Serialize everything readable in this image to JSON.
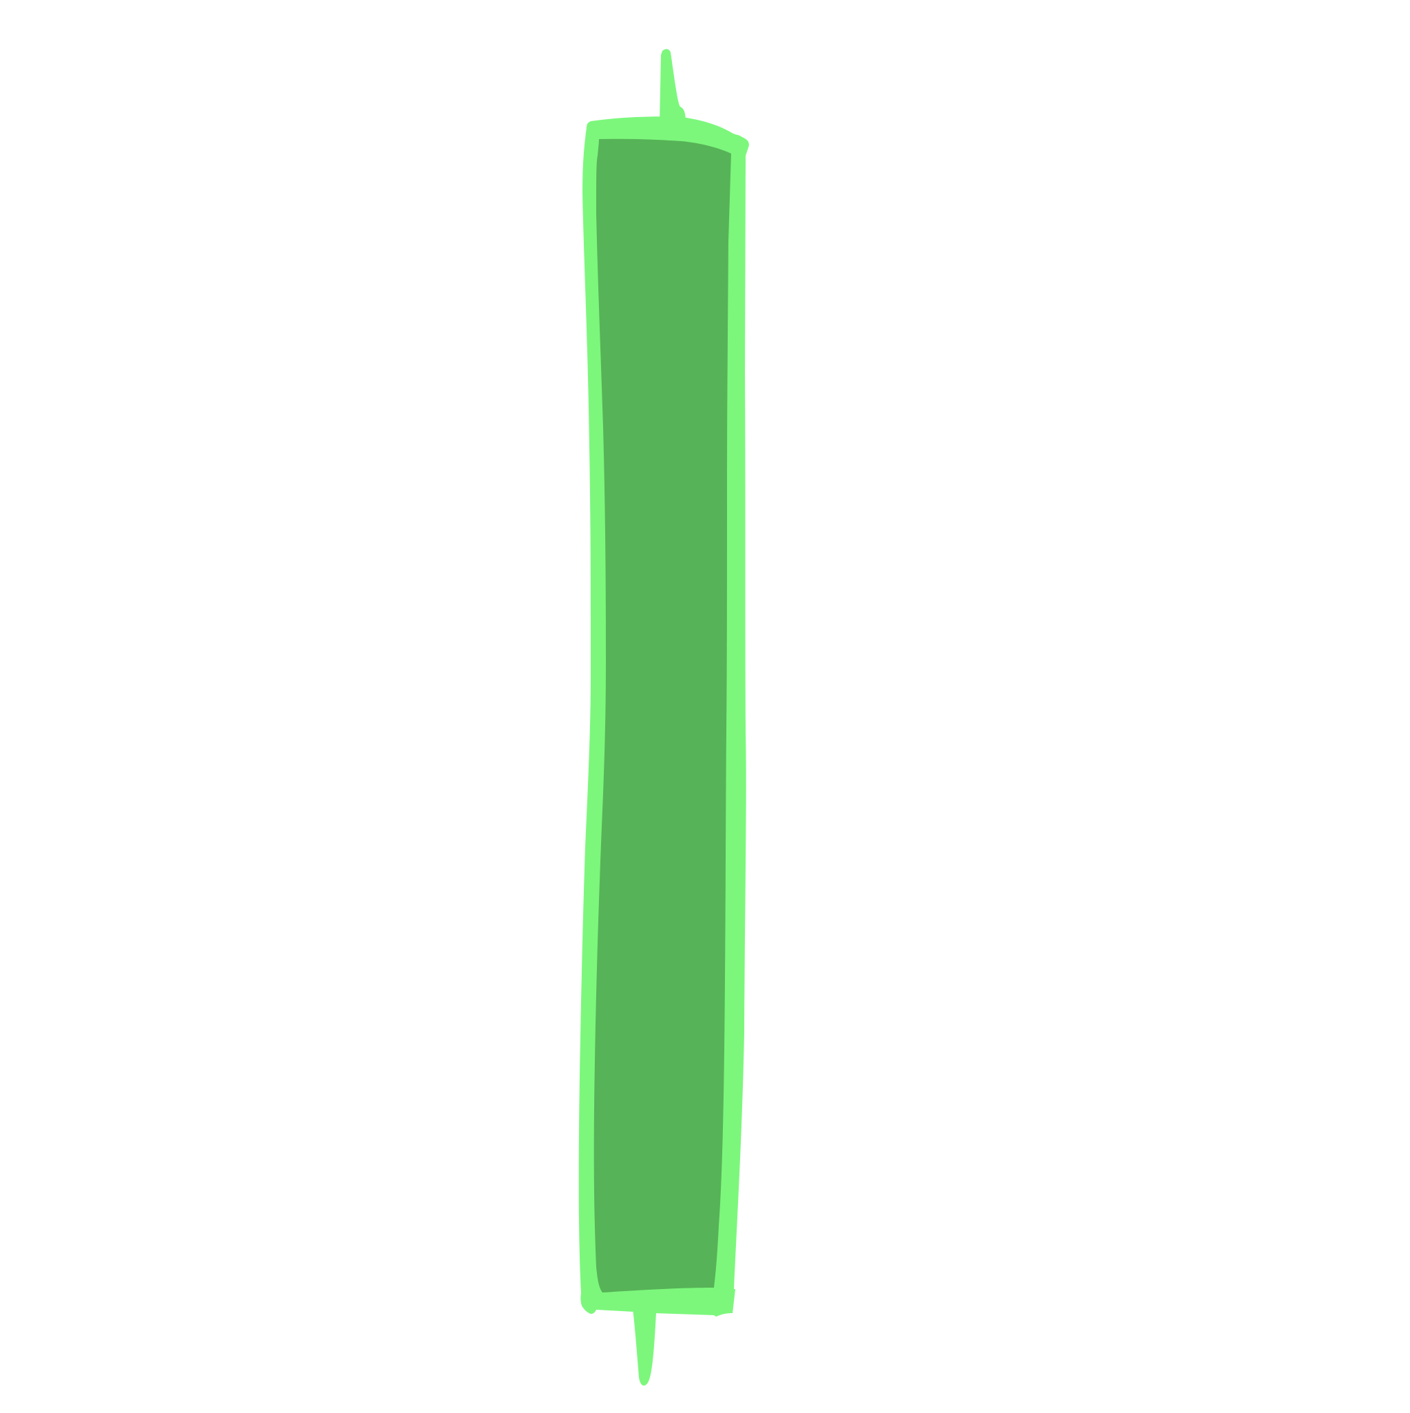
{
  "illustration": {
    "subject": "candlestick-icon",
    "colors": {
      "background": "#ffffff",
      "body_fill": "#57b357",
      "outline": "#7cf77c",
      "wick": "#7cf77c"
    }
  }
}
